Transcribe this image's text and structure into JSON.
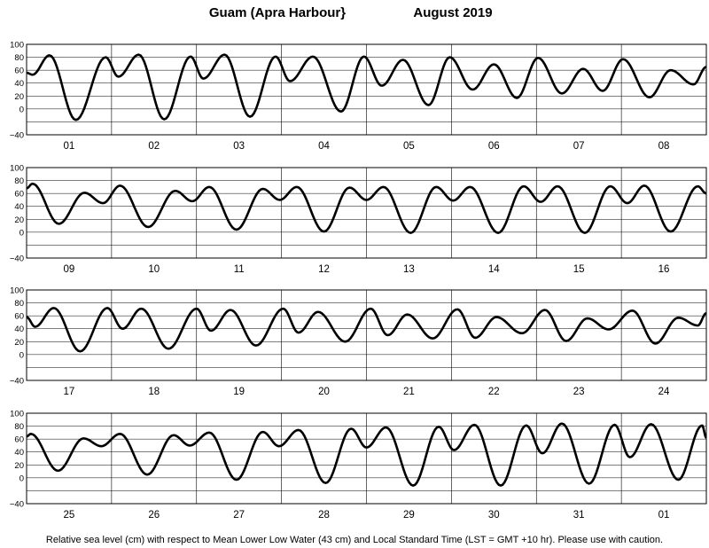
{
  "chart_data": {
    "type": "line",
    "title": "Guam (Apra Harbour}",
    "period": "August   2019",
    "footnote": "Relative sea level (cm) with respect to Mean Lower Low Water (43 cm) and Local Standard Time (LST = GMT +10 hr). Please use with caution.",
    "ylim": [
      -40,
      100
    ],
    "yticks": [
      "100",
      "80",
      "60",
      "40",
      "20",
      "0",
      "−40"
    ],
    "grid": true,
    "line_color": "#000000",
    "panels": [
      {
        "days": [
          "01",
          "02",
          "03",
          "04",
          "05",
          "06",
          "07",
          "08"
        ],
        "extrema": [
          {
            "t": 0.0,
            "v": 56
          },
          {
            "t": 0.07,
            "v": 53
          },
          {
            "t": 0.27,
            "v": 83
          },
          {
            "t": 0.58,
            "v": -17
          },
          {
            "t": 0.93,
            "v": 80
          },
          {
            "t": 1.08,
            "v": 50
          },
          {
            "t": 1.32,
            "v": 84
          },
          {
            "t": 1.62,
            "v": -16
          },
          {
            "t": 1.93,
            "v": 81
          },
          {
            "t": 2.08,
            "v": 47
          },
          {
            "t": 2.33,
            "v": 84
          },
          {
            "t": 2.63,
            "v": -12
          },
          {
            "t": 2.93,
            "v": 81
          },
          {
            "t": 3.1,
            "v": 43
          },
          {
            "t": 3.37,
            "v": 81
          },
          {
            "t": 3.7,
            "v": -4
          },
          {
            "t": 3.97,
            "v": 81
          },
          {
            "t": 4.18,
            "v": 36
          },
          {
            "t": 4.43,
            "v": 76
          },
          {
            "t": 4.73,
            "v": 6
          },
          {
            "t": 4.98,
            "v": 80
          },
          {
            "t": 5.25,
            "v": 30
          },
          {
            "t": 5.5,
            "v": 69
          },
          {
            "t": 5.77,
            "v": 17
          },
          {
            "t": 6.02,
            "v": 79
          },
          {
            "t": 6.3,
            "v": 24
          },
          {
            "t": 6.55,
            "v": 62
          },
          {
            "t": 6.78,
            "v": 28
          },
          {
            "t": 7.02,
            "v": 77
          },
          {
            "t": 7.33,
            "v": 18
          },
          {
            "t": 7.58,
            "v": 60
          },
          {
            "t": 7.85,
            "v": 38
          },
          {
            "t": 8.0,
            "v": 65
          }
        ]
      },
      {
        "days": [
          "09",
          "10",
          "11",
          "12",
          "13",
          "14",
          "15",
          "16"
        ],
        "extrema": [
          {
            "t": 0.0,
            "v": 68
          },
          {
            "t": 0.07,
            "v": 75
          },
          {
            "t": 0.38,
            "v": 13
          },
          {
            "t": 0.68,
            "v": 61
          },
          {
            "t": 0.9,
            "v": 45
          },
          {
            "t": 1.1,
            "v": 72
          },
          {
            "t": 1.43,
            "v": 8
          },
          {
            "t": 1.75,
            "v": 64
          },
          {
            "t": 1.95,
            "v": 48
          },
          {
            "t": 2.15,
            "v": 70
          },
          {
            "t": 2.47,
            "v": 4
          },
          {
            "t": 2.78,
            "v": 67
          },
          {
            "t": 2.98,
            "v": 50
          },
          {
            "t": 3.18,
            "v": 70
          },
          {
            "t": 3.5,
            "v": 1
          },
          {
            "t": 3.8,
            "v": 69
          },
          {
            "t": 4.0,
            "v": 50
          },
          {
            "t": 4.2,
            "v": 70
          },
          {
            "t": 4.52,
            "v": -1
          },
          {
            "t": 4.82,
            "v": 70
          },
          {
            "t": 5.02,
            "v": 49
          },
          {
            "t": 5.22,
            "v": 70
          },
          {
            "t": 5.55,
            "v": -1
          },
          {
            "t": 5.85,
            "v": 71
          },
          {
            "t": 6.05,
            "v": 47
          },
          {
            "t": 6.25,
            "v": 71
          },
          {
            "t": 6.57,
            "v": -1
          },
          {
            "t": 6.87,
            "v": 71
          },
          {
            "t": 7.07,
            "v": 45
          },
          {
            "t": 7.27,
            "v": 72
          },
          {
            "t": 7.58,
            "v": 1
          },
          {
            "t": 7.9,
            "v": 71
          },
          {
            "t": 8.0,
            "v": 60
          }
        ]
      },
      {
        "days": [
          "17",
          "18",
          "19",
          "20",
          "21",
          "22",
          "23",
          "24"
        ],
        "extrema": [
          {
            "t": 0.0,
            "v": 58
          },
          {
            "t": 0.1,
            "v": 43
          },
          {
            "t": 0.32,
            "v": 72
          },
          {
            "t": 0.63,
            "v": 5
          },
          {
            "t": 0.95,
            "v": 72
          },
          {
            "t": 1.13,
            "v": 40
          },
          {
            "t": 1.35,
            "v": 71
          },
          {
            "t": 1.67,
            "v": 9
          },
          {
            "t": 2.0,
            "v": 71
          },
          {
            "t": 2.17,
            "v": 37
          },
          {
            "t": 2.4,
            "v": 69
          },
          {
            "t": 2.7,
            "v": 14
          },
          {
            "t": 3.02,
            "v": 71
          },
          {
            "t": 3.2,
            "v": 34
          },
          {
            "t": 3.43,
            "v": 66
          },
          {
            "t": 3.75,
            "v": 20
          },
          {
            "t": 4.05,
            "v": 71
          },
          {
            "t": 4.25,
            "v": 30
          },
          {
            "t": 4.48,
            "v": 62
          },
          {
            "t": 4.78,
            "v": 25
          },
          {
            "t": 5.07,
            "v": 70
          },
          {
            "t": 5.28,
            "v": 26
          },
          {
            "t": 5.53,
            "v": 58
          },
          {
            "t": 5.83,
            "v": 33
          },
          {
            "t": 6.1,
            "v": 69
          },
          {
            "t": 6.35,
            "v": 21
          },
          {
            "t": 6.6,
            "v": 56
          },
          {
            "t": 6.85,
            "v": 39
          },
          {
            "t": 7.13,
            "v": 68
          },
          {
            "t": 7.4,
            "v": 17
          },
          {
            "t": 7.67,
            "v": 57
          },
          {
            "t": 7.9,
            "v": 45
          },
          {
            "t": 8.0,
            "v": 64
          }
        ]
      },
      {
        "days": [
          "25",
          "26",
          "27",
          "28",
          "29",
          "30",
          "31",
          "01"
        ],
        "extrema": [
          {
            "t": 0.0,
            "v": 64
          },
          {
            "t": 0.05,
            "v": 68
          },
          {
            "t": 0.37,
            "v": 11
          },
          {
            "t": 0.67,
            "v": 61
          },
          {
            "t": 0.88,
            "v": 49
          },
          {
            "t": 1.1,
            "v": 68
          },
          {
            "t": 1.42,
            "v": 5
          },
          {
            "t": 1.73,
            "v": 66
          },
          {
            "t": 1.92,
            "v": 50
          },
          {
            "t": 2.15,
            "v": 70
          },
          {
            "t": 2.47,
            "v": -3
          },
          {
            "t": 2.78,
            "v": 71
          },
          {
            "t": 2.97,
            "v": 49
          },
          {
            "t": 3.2,
            "v": 74
          },
          {
            "t": 3.52,
            "v": -8
          },
          {
            "t": 3.82,
            "v": 76
          },
          {
            "t": 4.0,
            "v": 47
          },
          {
            "t": 4.23,
            "v": 78
          },
          {
            "t": 4.55,
            "v": -12
          },
          {
            "t": 4.85,
            "v": 79
          },
          {
            "t": 5.03,
            "v": 43
          },
          {
            "t": 5.27,
            "v": 82
          },
          {
            "t": 5.58,
            "v": -12
          },
          {
            "t": 5.88,
            "v": 81
          },
          {
            "t": 6.07,
            "v": 38
          },
          {
            "t": 6.3,
            "v": 84
          },
          {
            "t": 6.62,
            "v": -9
          },
          {
            "t": 6.92,
            "v": 82
          },
          {
            "t": 7.1,
            "v": 32
          },
          {
            "t": 7.35,
            "v": 83
          },
          {
            "t": 7.67,
            "v": -3
          },
          {
            "t": 7.95,
            "v": 81
          },
          {
            "t": 8.0,
            "v": 62
          }
        ]
      }
    ]
  }
}
